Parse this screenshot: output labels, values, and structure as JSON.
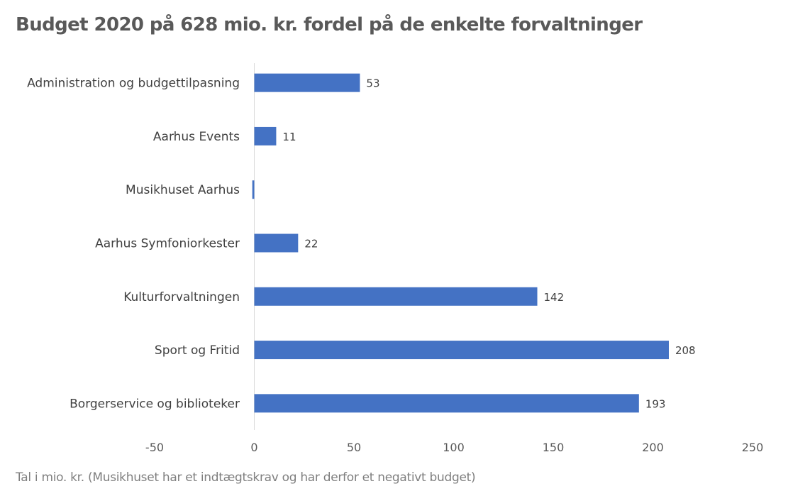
{
  "chart_data": {
    "type": "bar",
    "orientation": "horizontal",
    "title": "Budget 2020 på 628 mio. kr. fordel på de enkelte forvaltninger",
    "footnote": "Tal i mio. kr. (Musikhuset har et indtægtskrav og har derfor et negativt budget)",
    "xlabel": "",
    "ylabel": "",
    "xlim": [
      -50,
      250
    ],
    "xticks": [
      -50,
      0,
      50,
      100,
      150,
      200,
      250
    ],
    "categories": [
      "Administration og budgettilpasning",
      "Aarhus Events",
      "Musikhuset Aarhus",
      "Aarhus Symfoniorkester",
      "Kulturforvaltningen",
      "Sport og Fritid",
      "Borgerservice og biblioteker"
    ],
    "values": [
      53,
      11,
      -1,
      22,
      142,
      208,
      193
    ],
    "data_labels": [
      "53",
      "11",
      "",
      "22",
      "142",
      "208",
      "193"
    ],
    "bar_color": "#4472c4",
    "grid": false,
    "legend": "none"
  }
}
